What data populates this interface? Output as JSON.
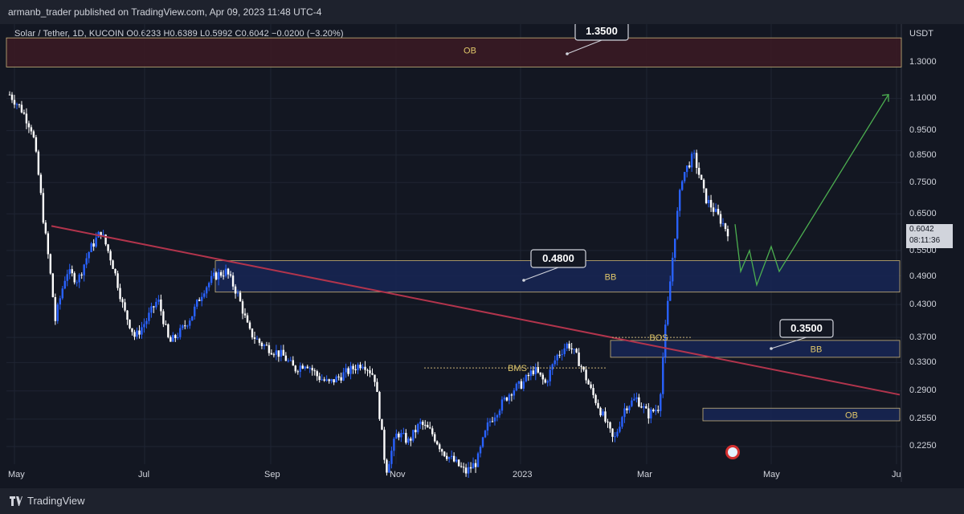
{
  "header": {
    "publisher": "armanb_trader published on TradingView.com, Apr 09, 2023 11:48 UTC-4"
  },
  "legend": {
    "text": "Solar / Tether, 1D, KUCOIN  O0.6233  H0.6389  L0.5992  C0.6042  −0.0200 (−3.20%)"
  },
  "axis": {
    "currency": "USDT",
    "ticks": [
      "1.3000",
      "1.1000",
      "0.9500",
      "0.8500",
      "0.7500",
      "0.6500",
      "0.5500",
      "0.4900",
      "0.4300",
      "0.3700",
      "0.3300",
      "0.2900",
      "0.2550",
      "0.2250"
    ],
    "x_ticks": [
      "May",
      "Jul",
      "Sep",
      "Nov",
      "2023",
      "Mar",
      "May",
      "Ju"
    ]
  },
  "price_box": {
    "price": "0.6042",
    "timer": "08:11:36"
  },
  "annotations": {
    "callout_1": "1.3500",
    "callout_2": "0.4800",
    "callout_3": "0.3500",
    "ob_top": "OB",
    "bb_mid": "BB",
    "bb_low": "BB",
    "ob_low": "OB",
    "bos": "BOS",
    "bms": "BMS"
  },
  "footer": {
    "brand": "TradingView"
  },
  "colors": {
    "background": "#131722",
    "candle_up": "#2962ff",
    "candle_down": "#ffffff",
    "trendline": "#b2344c",
    "projection": "#4caf50",
    "zone_blue": "#1a2a5e",
    "zone_red": "#4a1f2a"
  },
  "chart_data": {
    "type": "candlestick",
    "title": "Solar / Tether, 1D, KUCOIN",
    "ylabel": "USDT",
    "y_scale": "log",
    "ylim": [
      0.2,
      1.45
    ],
    "x_categories": [
      "May",
      "Jul",
      "Sep",
      "Nov",
      "2023",
      "Mar",
      "May",
      "Ju"
    ],
    "last": {
      "open": 0.6233,
      "high": 0.6389,
      "low": 0.5992,
      "close": 0.6042,
      "change": -0.02,
      "change_pct": -3.2
    },
    "zones": [
      {
        "label": "OB",
        "from": 1.27,
        "to": 1.45
      },
      {
        "label": "BB",
        "from": 0.455,
        "to": 0.525
      },
      {
        "label": "BB",
        "from": 0.338,
        "to": 0.365
      },
      {
        "label": "OB",
        "from": 0.253,
        "to": 0.268
      }
    ],
    "levels": [
      {
        "label": "BOS",
        "value": 0.37
      },
      {
        "label": "BMS",
        "value": 0.322
      }
    ],
    "callouts": [
      1.35,
      0.48,
      0.35
    ],
    "close_path": [
      1.12,
      1.05,
      0.95,
      0.62,
      0.4,
      0.5,
      0.48,
      0.55,
      0.6,
      0.52,
      0.42,
      0.37,
      0.4,
      0.44,
      0.36,
      0.38,
      0.41,
      0.46,
      0.49,
      0.5,
      0.45,
      0.38,
      0.36,
      0.35,
      0.34,
      0.32,
      0.33,
      0.31,
      0.3,
      0.31,
      0.32,
      0.33,
      0.31,
      0.2,
      0.24,
      0.23,
      0.25,
      0.24,
      0.22,
      0.21,
      0.2,
      0.21,
      0.25,
      0.27,
      0.29,
      0.3,
      0.32,
      0.3,
      0.34,
      0.36,
      0.33,
      0.29,
      0.26,
      0.23,
      0.27,
      0.28,
      0.26,
      0.27,
      0.49,
      0.77,
      0.85,
      0.7,
      0.65,
      0.6
    ]
  }
}
